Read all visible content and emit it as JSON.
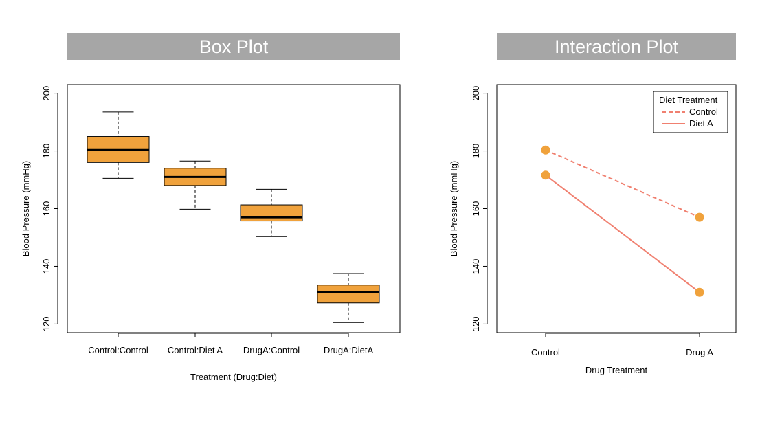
{
  "chart_data": [
    {
      "type": "box",
      "title": "Box Plot",
      "xlabel": "Treatment (Drug:Diet)",
      "ylabel": "Blood Pressure (mmHg)",
      "ylim": [
        117,
        203
      ],
      "yticks": [
        120,
        140,
        160,
        180,
        200
      ],
      "box_color": "#f0a23c",
      "categories": [
        "Control:Control",
        "Control:Diet A",
        "DrugA:Control",
        "DrugA:DietA"
      ],
      "boxes": [
        {
          "min": 170.5,
          "q1": 176,
          "median": 180.3,
          "q3": 185,
          "max": 193.5
        },
        {
          "min": 159.8,
          "q1": 168,
          "median": 171,
          "q3": 174,
          "max": 176.5
        },
        {
          "min": 150.3,
          "q1": 155.7,
          "median": 157,
          "q3": 161.3,
          "max": 166.7
        },
        {
          "min": 120.5,
          "q1": 127.3,
          "median": 131,
          "q3": 133.5,
          "max": 137.5
        }
      ]
    },
    {
      "type": "line",
      "title": "Interaction Plot",
      "xlabel": "Drug Treatment",
      "ylabel": "Blood Pressure (mmHg)",
      "ylim": [
        117,
        203
      ],
      "yticks": [
        120,
        140,
        160,
        180,
        200
      ],
      "categories": [
        "Control",
        "Drug A"
      ],
      "legend_title": "Diet Treatment",
      "legend_position": "top-right",
      "line_color": "#f08070",
      "point_color": "#f0a23c",
      "series": [
        {
          "name": "Control",
          "style": "dashed",
          "values": [
            180.3,
            157
          ]
        },
        {
          "name": "Diet A",
          "style": "solid",
          "values": [
            171.6,
            131
          ]
        }
      ]
    }
  ]
}
